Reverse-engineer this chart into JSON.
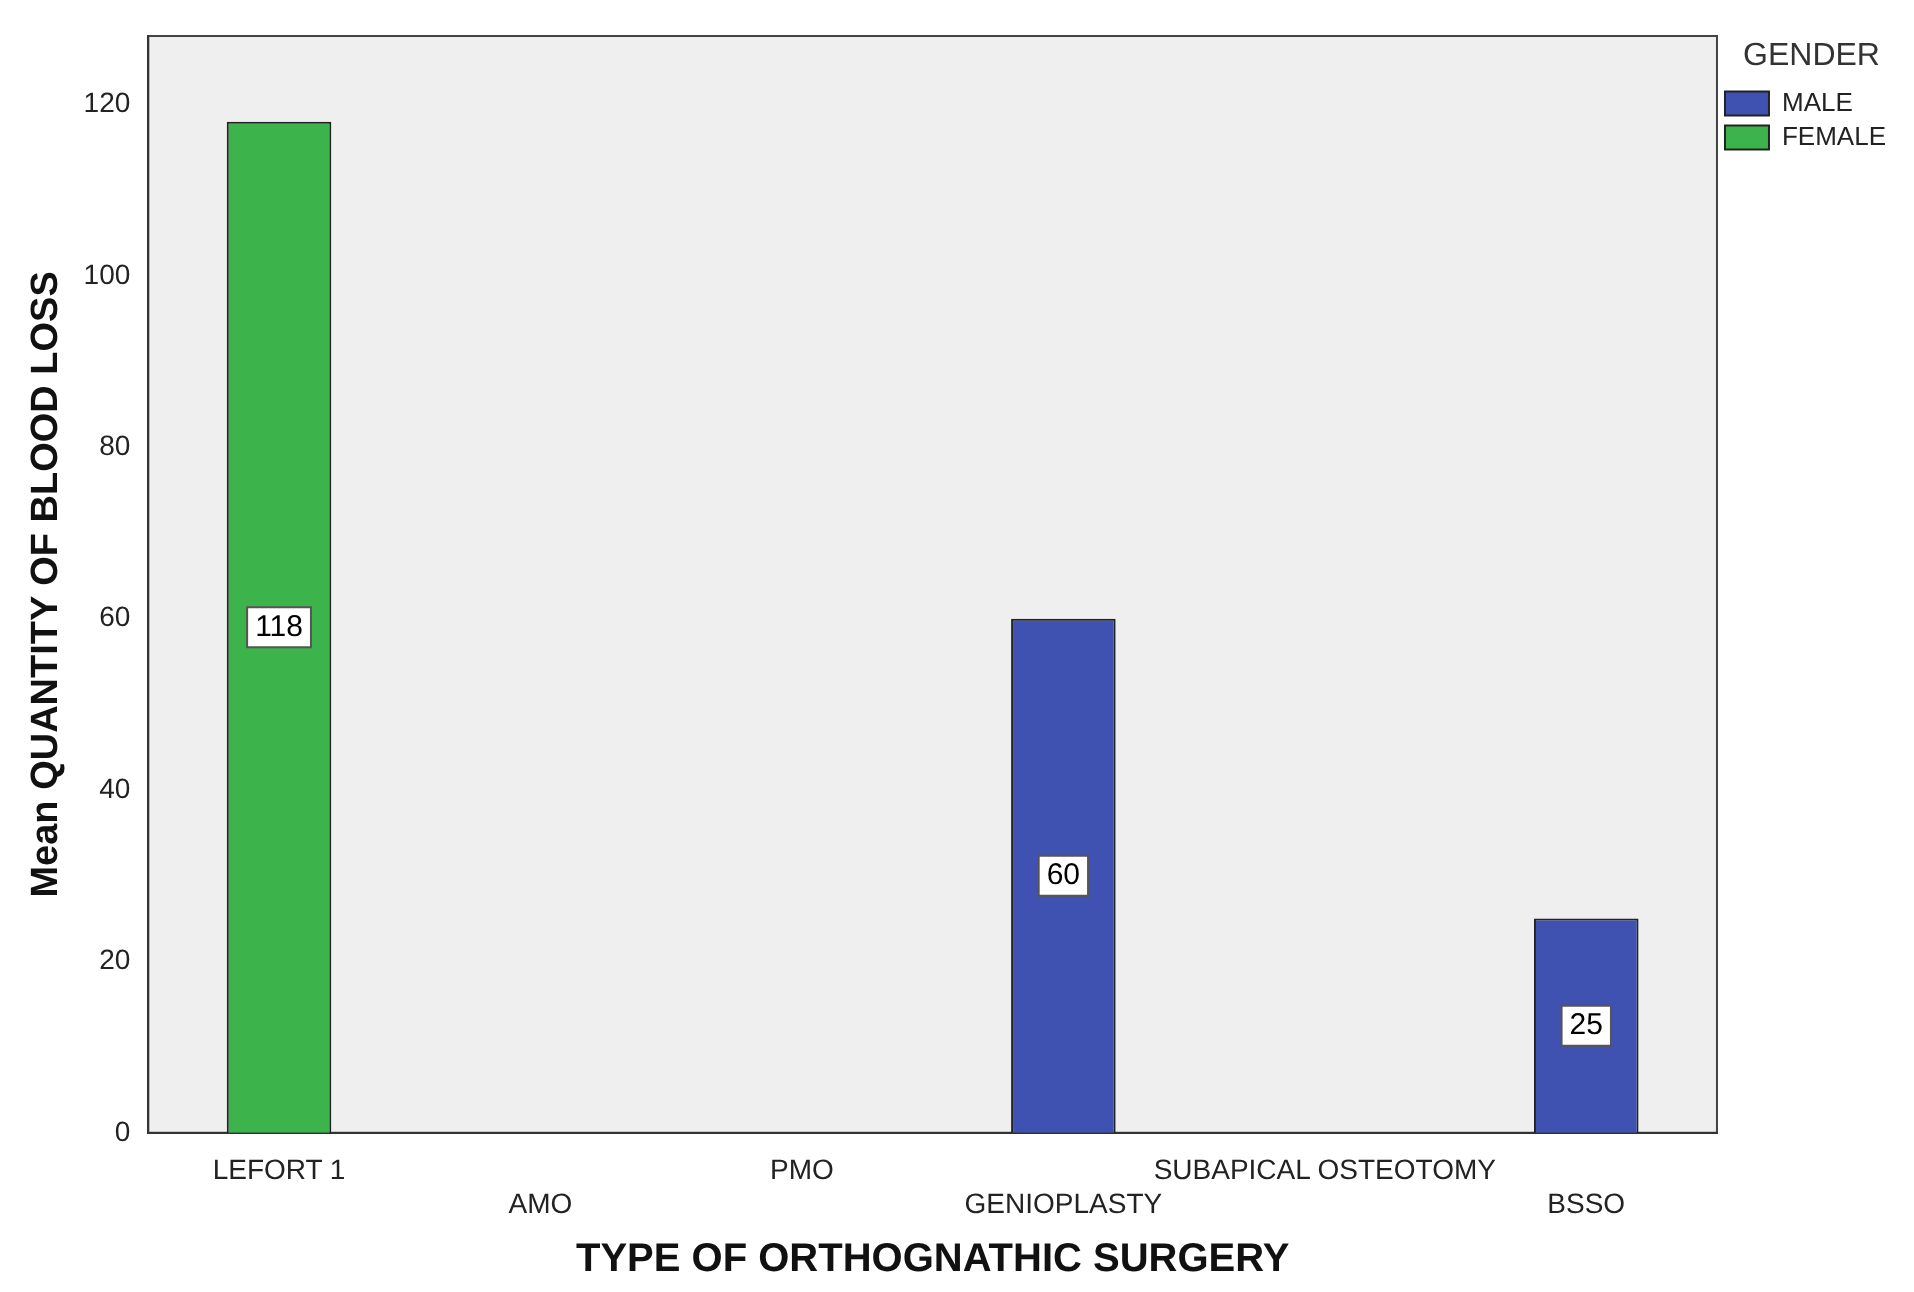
{
  "chart_data": {
    "type": "bar",
    "xlabel": "TYPE OF ORTHOGNATHIC SURGERY",
    "ylabel": "Mean QUANTITY OF BLOOD LOSS",
    "legend_title": "GENDER",
    "categories": [
      "LEFORT 1",
      "AMO",
      "PMO",
      "GENIOPLASTY",
      "SUBAPICAL OSTEOTOMY",
      "BSSO"
    ],
    "series": [
      {
        "name": "MALE",
        "color": "#3f51b1",
        "values": [
          null,
          null,
          null,
          60,
          null,
          25
        ]
      },
      {
        "name": "FEMALE",
        "color": "#3cb44b",
        "values": [
          118,
          null,
          null,
          null,
          null,
          null
        ]
      }
    ],
    "ylim": [
      0,
      128
    ],
    "yticks": [
      0,
      20,
      40,
      60,
      80,
      100,
      120
    ],
    "grid": false,
    "legend": "top right",
    "data_labels": true
  }
}
